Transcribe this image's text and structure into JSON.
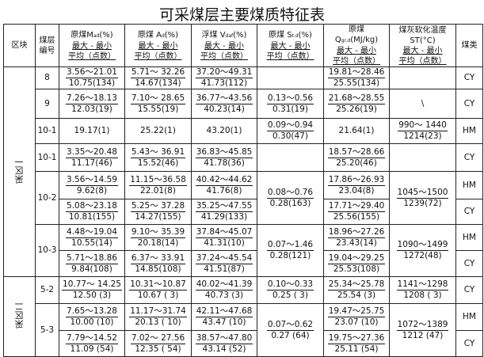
{
  "title": "可采煤层主要煤质特征表",
  "headers": {
    "region": "区块",
    "seam": "煤层编号",
    "m": {
      "name": "原煤M",
      "sub": "ad",
      "unit": "(%)",
      "range": "最大 - 最小",
      "avg": "平均（点数）"
    },
    "a": {
      "name": "原煤 A",
      "sub": "d",
      "unit": "(%)",
      "range": "最大 - 最小",
      "avg": "平均（点数）"
    },
    "v": {
      "name": "浮煤 V",
      "sub": "daf",
      "unit": "(%)",
      "range": "最大 - 最小",
      "avg": "平均（点数）"
    },
    "s": {
      "name": "原煤 S",
      "sub": "t.d",
      "unit": "(%)",
      "range": "最大 - 最小",
      "avg": "平均（点数）"
    },
    "q": {
      "name": "原煤",
      "name2": "Q",
      "sub": "gr.d",
      "unit": "(MJ/kg)",
      "range": "最大 - 最小",
      "avg": "平均（点数）"
    },
    "st": {
      "name": "煤灰软化温度",
      "unit": "ST(°C)",
      "range": "最大 - 最小",
      "avg": "平均（点数）"
    },
    "type": "煤类"
  },
  "regions": [
    "采区一",
    "采区二"
  ],
  "rows": [
    {
      "seam": "8",
      "m": [
        "3.56～21.01",
        "10.75(134)"
      ],
      "a": [
        "5.71～ 32.26",
        "14.67(134)"
      ],
      "v": [
        "37.20～49.31",
        "41.73(112)"
      ],
      "s": [
        "",
        ""
      ],
      "q": [
        "19.81～28.46",
        "25.55(134)"
      ],
      "st": [
        "",
        ""
      ],
      "type": "CY"
    },
    {
      "seam": "9",
      "m": [
        "7.26～18.13",
        "12.03(19)"
      ],
      "a": [
        "7.10～ 28.65",
        "15.55(19)"
      ],
      "v": [
        "36.77～43.56",
        "40.23(14)"
      ],
      "s": [
        "0.13～0.56",
        "0.31(19)"
      ],
      "q": [
        "21.68～28.55",
        "25.26(19)"
      ],
      "st": [
        "\\",
        ""
      ],
      "type": "CY"
    },
    {
      "seam": "10-1",
      "m": [
        "19.17(1)",
        ""
      ],
      "a": [
        "25.22(1)",
        ""
      ],
      "v": [
        "43.20(1)",
        ""
      ],
      "s": [
        "0.09～0.94",
        "0.30(47)"
      ],
      "q": [
        "21.64(1)",
        ""
      ],
      "st": [
        "990～ 1440",
        "1214(23)"
      ],
      "type": "HM"
    },
    {
      "seam": "10-1",
      "m": [
        "3.35～20.48",
        "11.17(46)"
      ],
      "a": [
        "5.43～ 36.91",
        "15.52(46)"
      ],
      "v": [
        "36.83～45.85",
        "41.78(36)"
      ],
      "s": [
        "",
        ""
      ],
      "q": [
        "18.57～28.66",
        "25.20(46)"
      ],
      "st": [
        "",
        ""
      ],
      "type": "CY"
    },
    {
      "seam": "10-2",
      "m": [
        "3.56～14.59",
        "9.62(8)"
      ],
      "a": [
        "11.15～36.58",
        "22.01(8)"
      ],
      "v": [
        "40.42～44.62",
        "41.76(8)"
      ],
      "s": [
        "0.08～0.76",
        "0.28(163)"
      ],
      "q": [
        "17.86～26.93",
        "23.04(8)"
      ],
      "st": [
        "1045～1500",
        "1239(72)"
      ],
      "type": "HM"
    },
    {
      "seam": "",
      "m": [
        "5.08～23.18",
        "10.81(155)"
      ],
      "a": [
        "5.25～ 37.28",
        "14.27(155)"
      ],
      "v": [
        "35.25～47.55",
        "41.29(133)"
      ],
      "q": [
        "17.71～29.40",
        "25.56(155)"
      ],
      "type": "CY"
    },
    {
      "seam": "10-3",
      "m": [
        "4.48～19.04",
        "10.55(14)"
      ],
      "a": [
        "9.10～ 35.39",
        "20.18(14)"
      ],
      "v": [
        "37.84～45.07",
        "41.31(10)"
      ],
      "s": [
        "0.07～1.46",
        "0.28(121)"
      ],
      "q": [
        "18.96～27.26",
        "23.43(14)"
      ],
      "st": [
        "1090～1499",
        "1272(48)"
      ],
      "type": "HM"
    },
    {
      "seam": "",
      "m": [
        "5.71～18.86",
        "9.84(108)"
      ],
      "a": [
        "6.37～ 33.91",
        "14.85(108)"
      ],
      "v": [
        "37.24～45.54",
        "41.51(87)"
      ],
      "q": [
        "19.04～29.25",
        "25.53(108)"
      ],
      "type": "CY"
    },
    {
      "seam": "5-2",
      "m": [
        "10.77～ 14.25",
        "12.50 (3)"
      ],
      "a": [
        "10.31～10.87",
        "10.67 ( 3)"
      ],
      "v": [
        "40.02～41.39",
        "40.73 (3)"
      ],
      "s": [
        "0.10～0.33",
        "0.25 ( 3)"
      ],
      "q": [
        "25.34～25.78",
        "25.54 (3)"
      ],
      "st": [
        "1141～1298",
        "1208 ( 3)"
      ],
      "type": "CY"
    },
    {
      "seam": "5-3",
      "m": [
        "7.65～13.28",
        "10.00 (10)"
      ],
      "a": [
        "11.17～31.74",
        "20.13 ( 10)"
      ],
      "v": [
        "42.11～47.68",
        "43.47 (10)"
      ],
      "s": [
        "0.07～0.62",
        "0.27 (64)"
      ],
      "q": [
        "19.47～25.75",
        "23.07 (10)"
      ],
      "st": [
        "1072～1389",
        "1212 (47)"
      ],
      "type": "HM"
    },
    {
      "seam": "",
      "m": [
        "7.79～14.52",
        "11.09 (54)"
      ],
      "a": [
        "7.02～ 27.56",
        "12.35 ( 54)"
      ],
      "v": [
        "38.57～47.80",
        "43.14 (52)"
      ],
      "q": [
        "19.75～27.36",
        "25.11 (54)"
      ],
      "type": "CY"
    }
  ]
}
